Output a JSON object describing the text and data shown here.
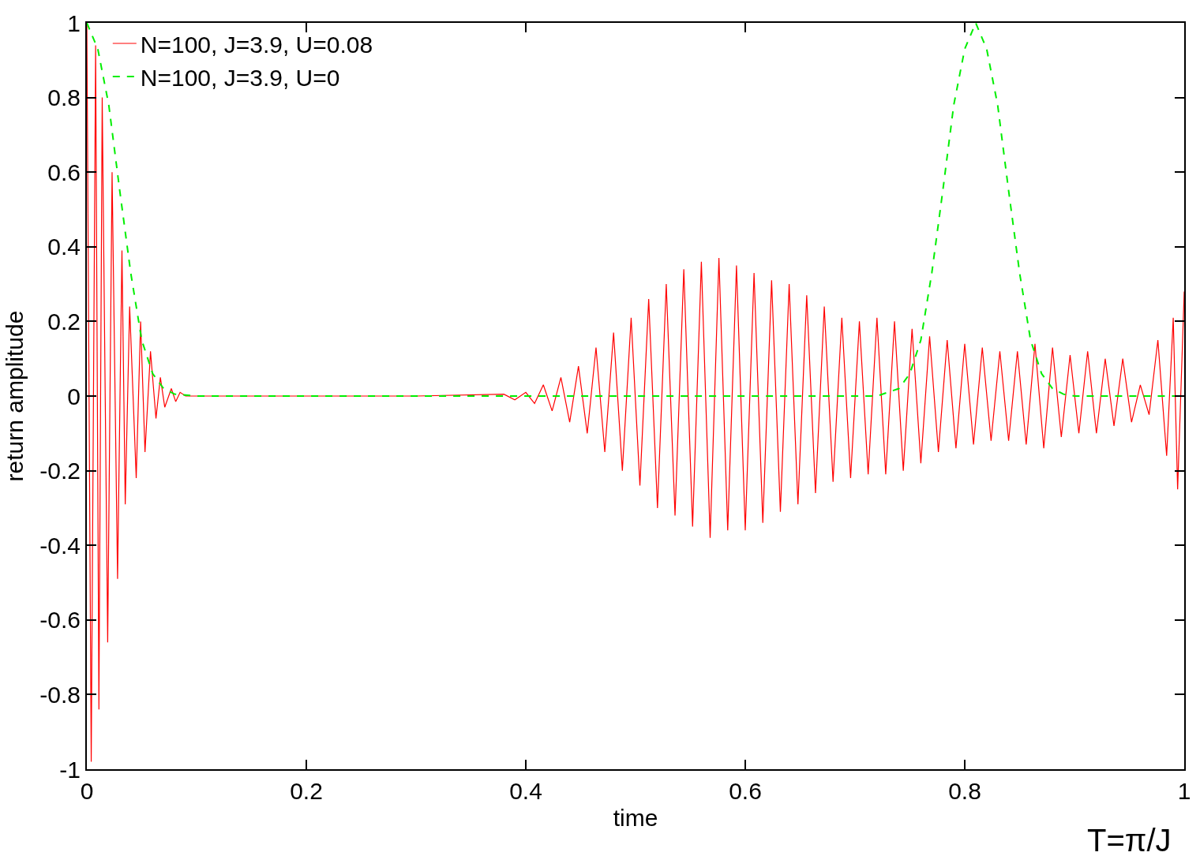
{
  "chart_data": {
    "type": "line",
    "xlabel": "time",
    "ylabel": "return amplitude",
    "annotations": [
      "T=π/J"
    ],
    "xlim": [
      0,
      1
    ],
    "xticks": [
      0,
      0.2,
      0.4,
      0.6,
      0.8,
      1
    ],
    "ylim": [
      -1,
      1
    ],
    "yticks": [
      -1,
      -0.8,
      -0.6,
      -0.4,
      -0.2,
      0,
      0.2,
      0.4,
      0.6,
      0.8,
      1
    ],
    "legend": "top left",
    "marker": "none",
    "series": [
      {
        "name": "N=100, J=3.9, U=0.08",
        "color": "#ff0000",
        "line_style": "solid",
        "x": [
          0,
          0.004,
          0.008,
          0.011,
          0.014,
          0.019,
          0.023,
          0.028,
          0.032,
          0.035,
          0.039,
          0.045,
          0.049,
          0.053,
          0.058,
          0.063,
          0.067,
          0.071,
          0.077,
          0.081,
          0.085,
          0.09,
          0.2,
          0.3,
          0.38,
          0.39,
          0.4,
          0.408,
          0.416,
          0.424,
          0.432,
          0.44,
          0.448,
          0.456,
          0.464,
          0.472,
          0.48,
          0.488,
          0.496,
          0.504,
          0.512,
          0.52,
          0.528,
          0.536,
          0.544,
          0.552,
          0.56,
          0.568,
          0.576,
          0.584,
          0.592,
          0.6,
          0.608,
          0.616,
          0.624,
          0.632,
          0.64,
          0.648,
          0.656,
          0.664,
          0.672,
          0.68,
          0.688,
          0.696,
          0.704,
          0.712,
          0.72,
          0.728,
          0.736,
          0.744,
          0.752,
          0.76,
          0.768,
          0.776,
          0.784,
          0.792,
          0.8,
          0.808,
          0.816,
          0.824,
          0.832,
          0.84,
          0.848,
          0.856,
          0.864,
          0.872,
          0.88,
          0.888,
          0.896,
          0.904,
          0.912,
          0.92,
          0.928,
          0.936,
          0.944,
          0.952,
          0.96,
          0.968,
          0.976,
          0.984,
          0.99,
          0.994,
          1
        ],
        "values": [
          1,
          -0.98,
          0.94,
          -0.84,
          0.8,
          -0.66,
          0.6,
          -0.49,
          0.39,
          -0.29,
          0.24,
          -0.22,
          0.2,
          -0.15,
          0.12,
          -0.06,
          0.05,
          -0.03,
          0.02,
          -0.015,
          0.01,
          0,
          0,
          0,
          0.005,
          -0.01,
          0.01,
          -0.02,
          0.03,
          -0.04,
          0.05,
          -0.07,
          0.08,
          -0.1,
          0.13,
          -0.15,
          0.17,
          -0.2,
          0.21,
          -0.24,
          0.26,
          -0.3,
          0.3,
          -0.32,
          0.34,
          -0.35,
          0.36,
          -0.38,
          0.37,
          -0.36,
          0.35,
          -0.36,
          0.33,
          -0.34,
          0.31,
          -0.31,
          0.3,
          -0.29,
          0.27,
          -0.26,
          0.24,
          -0.23,
          0.21,
          -0.22,
          0.2,
          -0.21,
          0.21,
          -0.21,
          0.2,
          -0.2,
          0.18,
          -0.18,
          0.16,
          -0.15,
          0.15,
          -0.14,
          0.14,
          -0.13,
          0.13,
          -0.12,
          0.12,
          -0.12,
          0.12,
          -0.13,
          0.14,
          -0.14,
          0.13,
          -0.11,
          0.11,
          -0.1,
          0.12,
          -0.1,
          0.1,
          -0.08,
          0.1,
          -0.07,
          0.03,
          -0.05,
          0.15,
          -0.16,
          0.21,
          -0.25,
          0.28
        ]
      },
      {
        "name": "N=100, J=3.9, U=0",
        "color": "#00ee00",
        "line_style": "dashed",
        "x": [
          0,
          0.01,
          0.02,
          0.03,
          0.04,
          0.05,
          0.06,
          0.07,
          0.08,
          0.1,
          0.72,
          0.74,
          0.75,
          0.76,
          0.77,
          0.78,
          0.79,
          0.8,
          0.81,
          0.82,
          0.83,
          0.84,
          0.85,
          0.86,
          0.87,
          0.88,
          0.89,
          0.9,
          1
        ],
        "values": [
          1,
          0.93,
          0.78,
          0.55,
          0.33,
          0.15,
          0.06,
          0.02,
          0.005,
          0,
          0,
          0.02,
          0.06,
          0.15,
          0.33,
          0.55,
          0.78,
          0.93,
          1,
          0.93,
          0.78,
          0.55,
          0.33,
          0.15,
          0.06,
          0.02,
          0.005,
          0,
          0
        ]
      }
    ]
  }
}
